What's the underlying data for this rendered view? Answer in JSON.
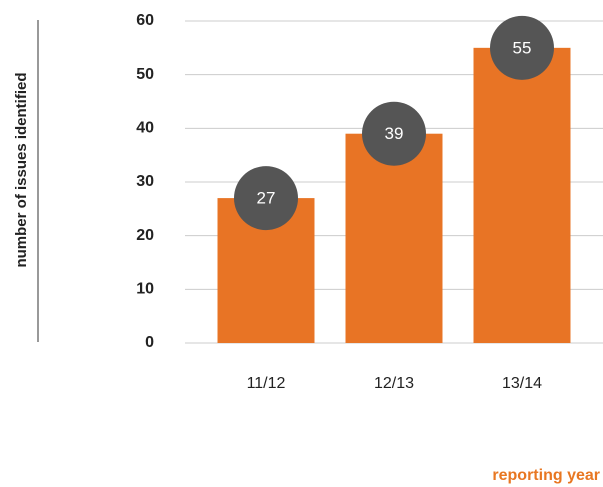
{
  "chart_data": {
    "type": "bar",
    "categories": [
      "11/12",
      "12/13",
      "13/14"
    ],
    "values": [
      27,
      39,
      55
    ],
    "color": "#e87425",
    "label_color": "#555555",
    "ylim": [
      0,
      60
    ],
    "yticks": [
      0,
      10,
      20,
      30,
      40,
      50,
      60
    ],
    "grid": true,
    "ylabel": "number of issues identified",
    "xlabel": "reporting year"
  }
}
